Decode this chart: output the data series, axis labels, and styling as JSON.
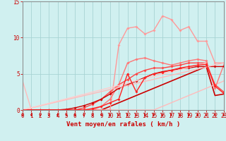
{
  "xlabel": "Vent moyen/en rafales ( km/h )",
  "xlim": [
    0,
    23
  ],
  "ylim": [
    0,
    15
  ],
  "yticks": [
    0,
    5,
    10,
    15
  ],
  "xticks": [
    0,
    1,
    2,
    3,
    4,
    5,
    6,
    7,
    8,
    9,
    10,
    11,
    12,
    13,
    14,
    15,
    16,
    17,
    18,
    19,
    20,
    21,
    22,
    23
  ],
  "bg_color": "#d0f0f0",
  "grid_color": "#a8d4d4",
  "lines": [
    {
      "x": [
        0,
        1,
        2,
        3,
        4,
        5,
        6,
        7,
        8,
        9,
        10,
        11,
        12,
        13,
        14,
        15,
        16,
        17,
        18,
        19,
        20,
        21,
        22,
        23
      ],
      "y": [
        0,
        0,
        0,
        0,
        0,
        0,
        0,
        0,
        0,
        0,
        0.5,
        1.0,
        1.5,
        2.0,
        2.5,
        3.0,
        3.5,
        4.0,
        4.5,
        5.0,
        5.5,
        6.0,
        2.0,
        2.2
      ],
      "color": "#cc0000",
      "lw": 1.2,
      "marker": null,
      "ms": 0
    },
    {
      "x": [
        0,
        1,
        2,
        3,
        4,
        5,
        6,
        7,
        8,
        9,
        10,
        11,
        12,
        13,
        14,
        15,
        16,
        17,
        18,
        19,
        20,
        21,
        22,
        23
      ],
      "y": [
        4,
        0,
        0,
        0,
        0,
        0,
        0,
        0,
        0,
        0,
        0,
        0,
        0,
        0,
        0,
        0,
        0.5,
        1.0,
        1.5,
        2.0,
        2.5,
        3.0,
        3.5,
        4.0
      ],
      "color": "#ffbbbb",
      "lw": 1.0,
      "marker": null,
      "ms": 0
    },
    {
      "x": [
        0,
        1,
        2,
        3,
        4,
        5,
        6,
        7,
        8,
        9,
        10,
        11,
        12,
        13,
        14,
        15,
        16,
        17,
        18,
        19,
        20,
        21,
        22,
        23
      ],
      "y": [
        0,
        0,
        0,
        0,
        0,
        0,
        0,
        0,
        0,
        0,
        0,
        9.0,
        11.3,
        11.5,
        10.5,
        11.0,
        13.0,
        12.5,
        11.0,
        11.5,
        9.5,
        9.5,
        6.5,
        6.5
      ],
      "color": "#ff9999",
      "lw": 1.0,
      "marker": "D",
      "ms": 2
    },
    {
      "x": [
        0,
        1,
        2,
        3,
        4,
        5,
        6,
        7,
        8,
        9,
        10,
        11,
        12,
        13,
        14,
        15,
        16,
        17,
        18,
        19,
        20,
        21,
        22,
        23
      ],
      "y": [
        0,
        0,
        0,
        0,
        0,
        0,
        0,
        0,
        0,
        0.5,
        1.5,
        3.5,
        6.5,
        7.0,
        7.2,
        6.8,
        6.5,
        6.2,
        6.5,
        6.8,
        7.0,
        6.8,
        3.0,
        6.2
      ],
      "color": "#ff7777",
      "lw": 1.0,
      "marker": "D",
      "ms": 2
    },
    {
      "x": [
        0,
        1,
        2,
        3,
        4,
        5,
        6,
        7,
        8,
        9,
        10,
        11,
        12,
        13,
        14,
        15,
        16,
        17,
        18,
        19,
        20,
        21,
        22,
        23
      ],
      "y": [
        0,
        0,
        0,
        0,
        0,
        0,
        0,
        0.3,
        0.8,
        1.5,
        2.5,
        3.5,
        4.2,
        5.0,
        5.5,
        5.8,
        5.8,
        6.0,
        6.2,
        6.5,
        6.5,
        6.5,
        3.5,
        2.5
      ],
      "color": "#ff4444",
      "lw": 1.0,
      "marker": "D",
      "ms": 2
    },
    {
      "x": [
        0,
        1,
        2,
        3,
        4,
        5,
        6,
        7,
        8,
        9,
        10,
        11,
        12,
        13,
        14,
        15,
        16,
        17,
        18,
        19,
        20,
        21,
        22,
        23
      ],
      "y": [
        0,
        0,
        0,
        0,
        0,
        0.1,
        0.3,
        0.6,
        1.0,
        1.5,
        2.2,
        3.0,
        3.5,
        4.0,
        4.5,
        5.0,
        5.3,
        5.5,
        5.7,
        5.8,
        6.0,
        6.0,
        6.0,
        6.0
      ],
      "color": "#cc0000",
      "lw": 1.0,
      "marker": "D",
      "ms": 2
    },
    {
      "x": [
        0,
        23
      ],
      "y": [
        0,
        6.5
      ],
      "color": "#ffbbbb",
      "lw": 1.0,
      "marker": null,
      "ms": 0
    },
    {
      "x": [
        0,
        21
      ],
      "y": [
        0,
        6.5
      ],
      "color": "#ffcccc",
      "lw": 1.0,
      "marker": null,
      "ms": 0
    },
    {
      "x": [
        0,
        1,
        2,
        3,
        4,
        5,
        6,
        7,
        8,
        9,
        10,
        11,
        12,
        13,
        14,
        15,
        16,
        17,
        18,
        19,
        20,
        21,
        22,
        23
      ],
      "y": [
        0,
        0,
        0,
        0,
        0,
        0,
        0,
        0,
        0.2,
        0.5,
        1.0,
        1.5,
        5.0,
        2.5,
        4.5,
        5.0,
        5.2,
        5.5,
        5.8,
        6.0,
        6.2,
        6.3,
        3.3,
        2.3
      ],
      "color": "#ff2222",
      "lw": 1.0,
      "marker": "D",
      "ms": 2
    }
  ],
  "tick_color": "#cc0000",
  "labelsize": 5.5,
  "xlabel_fontsize": 6.5,
  "spine_color": "#888888"
}
